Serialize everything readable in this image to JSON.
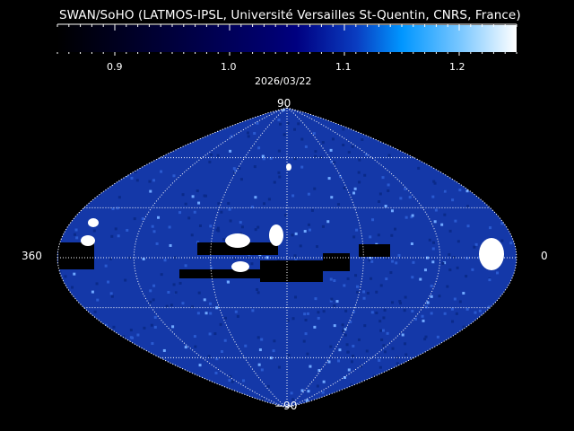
{
  "title": "SWAN/SoHO (LATMOS-IPSL, Université Versailles St-Quentin, CNRS, France)",
  "colorbar": {
    "min": 0.85,
    "max": 1.25,
    "ticks": [
      "0.9",
      "1.0",
      "1.1",
      "1.2"
    ],
    "colors": [
      "#000000",
      "#000080",
      "#0096ff",
      "#ffffff"
    ]
  },
  "date": "2026/03/22",
  "map": {
    "lat_top": "90",
    "lat_bottom": "−90",
    "lon_left": "360",
    "lon_right": "0",
    "background_color": "#1438a8",
    "grid": "dotted white"
  }
}
